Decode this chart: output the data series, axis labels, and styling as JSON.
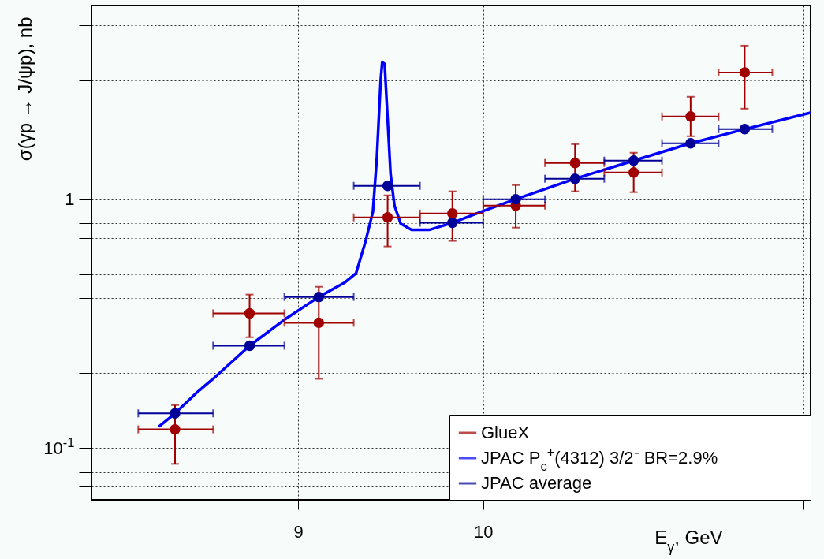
{
  "chart_data": {
    "type": "scatter",
    "xlabel": "E$_{γ}$, GeV",
    "ylabel": "σ(γp → J/ψp), nb",
    "log": "xy",
    "grid": true,
    "legend": "bottom right",
    "xlim": [
      8.0,
      12.05
    ],
    "ylim": [
      0.062,
      6
    ],
    "xticks": [
      9,
      10,
      {
        "value": 11,
        "label": null
      },
      {
        "value": 12,
        "label": null
      }
    ],
    "yticks": [
      {
        "value": 0.07,
        "label": null
      },
      {
        "value": 0.08,
        "label": null
      },
      {
        "value": 0.09,
        "label": null
      },
      {
        "value": 0.1,
        "label": "10$^{-1}$"
      },
      {
        "value": 0.2,
        "label": null
      },
      {
        "value": 0.3,
        "label": null
      },
      {
        "value": 0.4,
        "label": null
      },
      {
        "value": 0.5,
        "label": null
      },
      {
        "value": 0.6,
        "label": null
      },
      {
        "value": 0.7,
        "label": null
      },
      {
        "value": 0.8,
        "label": null
      },
      {
        "value": 0.9,
        "label": null
      },
      1,
      {
        "value": 2,
        "label": null
      },
      {
        "value": 3,
        "label": null
      },
      {
        "value": 4,
        "label": null
      },
      {
        "value": 5,
        "label": null
      },
      {
        "value": 6,
        "label": null
      }
    ],
    "series": [
      {
        "name": "GlueX",
        "marker": "circle",
        "color": "#a00000",
        "x": [
          8.39,
          8.754,
          9.106,
          9.47,
          9.826,
          10.187,
          10.537,
          10.895,
          11.254,
          11.606
        ],
        "values": [
          0.119,
          0.348,
          0.319,
          0.846,
          0.877,
          0.943,
          1.398,
          1.281,
          2.149,
          3.231
        ],
        "errors": [
          [
            0.0865,
            0.149
          ],
          [
            0.279,
            0.414
          ],
          [
            0.19,
            0.445
          ],
          [
            0.646,
            1.037
          ],
          [
            0.68,
            1.076
          ],
          [
            0.769,
            1.14
          ],
          [
            1.076,
            1.665
          ],
          [
            1.068,
            1.537
          ],
          [
            1.791,
            2.579
          ],
          [
            2.311,
            4.14
          ]
        ],
        "xerrors": [
          [
            8.216,
            8.574
          ],
          [
            8.574,
            8.929
          ],
          [
            8.929,
            9.289
          ],
          [
            9.289,
            9.646
          ],
          [
            9.646,
            10
          ],
          [
            10,
            10.358
          ],
          [
            10.358,
            10.714
          ],
          [
            10.714,
            11.072
          ],
          [
            11.072,
            11.435
          ],
          [
            11.435,
            11.79
          ]
        ]
      },
      {
        "name": "JPAC P$_{c}$$^{+}$(4312) 3/2⁻ BR=2.9%",
        "type": "line",
        "color": "#0000ff",
        "x": [
          8.313,
          8.39,
          8.497,
          8.574,
          8.754,
          8.929,
          9.106,
          9.24,
          9.301,
          9.35,
          9.391,
          9.412,
          9.433,
          9.441,
          9.454,
          9.47,
          9.486,
          9.507,
          9.541,
          9.6,
          9.697,
          9.826,
          10,
          10.187,
          10.537,
          10.895,
          11.254,
          11.606,
          12.05
        ],
        "values": [
          0.122,
          0.138,
          0.168,
          0.19,
          0.258,
          0.328,
          0.405,
          0.462,
          0.504,
          0.67,
          0.89,
          1.461,
          3.03,
          3.55,
          3.5,
          2.1,
          1.262,
          0.943,
          0.798,
          0.753,
          0.753,
          0.804,
          0.897,
          1.0,
          1.209,
          1.429,
          1.678,
          1.912,
          2.228
        ]
      },
      {
        "name": "JPAC average",
        "marker": "circle",
        "color": "#000099",
        "x": [
          8.39,
          8.754,
          9.106,
          9.47,
          9.826,
          10.187,
          10.537,
          10.895,
          11.254,
          11.606
        ],
        "values": [
          0.138,
          0.258,
          0.405,
          1.132,
          0.804,
          1.0,
          1.209,
          1.429,
          1.678,
          1.912
        ],
        "xerrors": [
          [
            8.216,
            8.574
          ],
          [
            8.574,
            8.929
          ],
          [
            8.929,
            9.289
          ],
          [
            9.289,
            9.646
          ],
          [
            9.646,
            10
          ],
          [
            10,
            10.358
          ],
          [
            10.358,
            10.714
          ],
          [
            10.714,
            11.072
          ],
          [
            11.072,
            11.435
          ],
          [
            11.435,
            11.79
          ]
        ]
      }
    ]
  }
}
